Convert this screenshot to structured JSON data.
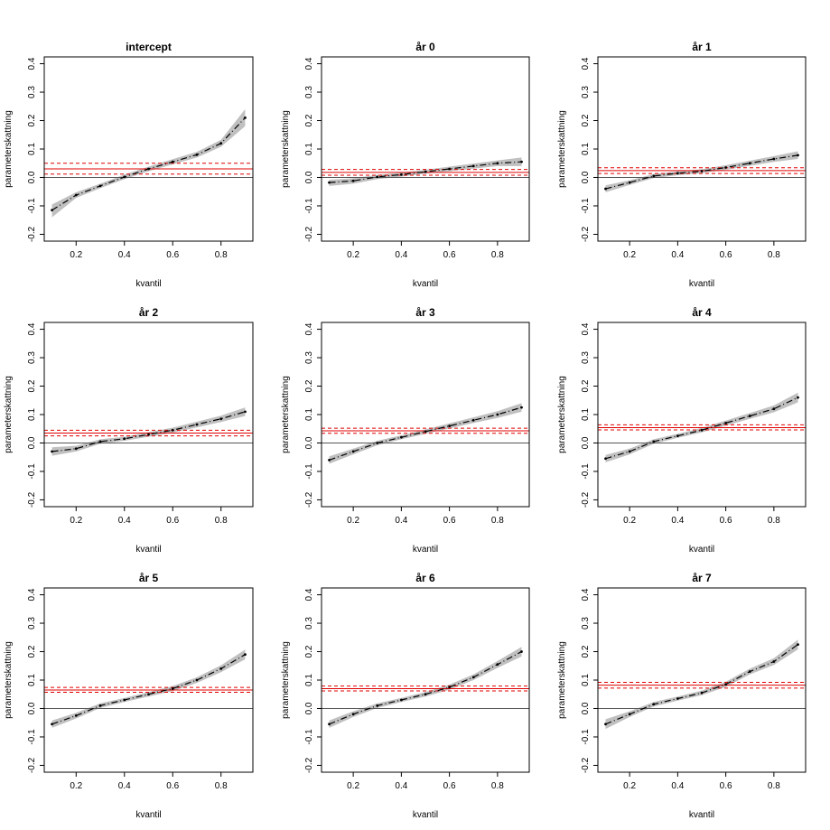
{
  "chart_data": [
    {
      "type": "line",
      "title": "intercept",
      "xlabel": "kvantil",
      "ylabel": "parameterskattning",
      "xlim": [
        0.1,
        0.9
      ],
      "ylim": [
        -0.2,
        0.4
      ],
      "xticks": [
        0.2,
        0.4,
        0.6,
        0.8
      ],
      "yticks": [
        -0.2,
        -0.1,
        0.0,
        0.1,
        0.2,
        0.3,
        0.4
      ],
      "x": [
        0.1,
        0.2,
        0.3,
        0.4,
        0.5,
        0.6,
        0.7,
        0.8,
        0.9
      ],
      "series": [
        {
          "values": [
            -0.115,
            -0.062,
            -0.03,
            0.002,
            0.03,
            0.055,
            0.08,
            0.12,
            0.21
          ],
          "lower": [
            -0.14,
            -0.072,
            -0.038,
            -0.006,
            0.022,
            0.046,
            0.07,
            0.108,
            0.18
          ],
          "upper": [
            -0.095,
            -0.052,
            -0.022,
            0.01,
            0.038,
            0.064,
            0.09,
            0.132,
            0.24
          ]
        }
      ],
      "reference": {
        "estimate": 0.03,
        "lower": 0.012,
        "upper": 0.05,
        "zero": 0
      }
    },
    {
      "type": "line",
      "title": "år 0",
      "xlabel": "kvantil",
      "ylabel": "parameterskattning",
      "xlim": [
        0.1,
        0.9
      ],
      "ylim": [
        -0.2,
        0.4
      ],
      "xticks": [
        0.2,
        0.4,
        0.6,
        0.8
      ],
      "yticks": [
        -0.2,
        -0.1,
        0.0,
        0.1,
        0.2,
        0.3,
        0.4
      ],
      "x": [
        0.1,
        0.2,
        0.3,
        0.4,
        0.5,
        0.6,
        0.7,
        0.8,
        0.9
      ],
      "series": [
        {
          "values": [
            -0.018,
            -0.012,
            0.002,
            0.01,
            0.02,
            0.03,
            0.04,
            0.05,
            0.055
          ],
          "lower": [
            -0.03,
            -0.022,
            -0.006,
            0.003,
            0.013,
            0.022,
            0.031,
            0.04,
            0.04
          ],
          "upper": [
            -0.008,
            -0.003,
            0.009,
            0.017,
            0.027,
            0.038,
            0.049,
            0.06,
            0.07
          ]
        }
      ],
      "reference": {
        "estimate": 0.018,
        "lower": 0.008,
        "upper": 0.028,
        "zero": 0
      }
    },
    {
      "type": "line",
      "title": "år 1",
      "xlabel": "kvantil",
      "ylabel": "parameterskattning",
      "xlim": [
        0.1,
        0.9
      ],
      "ylim": [
        -0.2,
        0.4
      ],
      "xticks": [
        0.2,
        0.4,
        0.6,
        0.8
      ],
      "yticks": [
        -0.2,
        -0.1,
        0.0,
        0.1,
        0.2,
        0.3,
        0.4
      ],
      "x": [
        0.1,
        0.2,
        0.3,
        0.4,
        0.5,
        0.6,
        0.7,
        0.8,
        0.9
      ],
      "series": [
        {
          "values": [
            -0.04,
            -0.018,
            0.005,
            0.015,
            0.022,
            0.035,
            0.05,
            0.065,
            0.078
          ],
          "lower": [
            -0.052,
            -0.026,
            -0.002,
            0.008,
            0.015,
            0.027,
            0.041,
            0.055,
            0.065
          ],
          "upper": [
            -0.028,
            -0.01,
            0.012,
            0.022,
            0.029,
            0.043,
            0.059,
            0.075,
            0.092
          ]
        }
      ],
      "reference": {
        "estimate": 0.024,
        "lower": 0.014,
        "upper": 0.034,
        "zero": 0
      }
    },
    {
      "type": "line",
      "title": "år 2",
      "xlabel": "kvantil",
      "ylabel": "parameterskattning",
      "xlim": [
        0.1,
        0.9
      ],
      "ylim": [
        -0.2,
        0.4
      ],
      "xticks": [
        0.2,
        0.4,
        0.6,
        0.8
      ],
      "yticks": [
        -0.2,
        -0.1,
        0.0,
        0.1,
        0.2,
        0.3,
        0.4
      ],
      "x": [
        0.1,
        0.2,
        0.3,
        0.4,
        0.5,
        0.6,
        0.7,
        0.8,
        0.9
      ],
      "series": [
        {
          "values": [
            -0.03,
            -0.02,
            0.005,
            0.015,
            0.03,
            0.045,
            0.065,
            0.085,
            0.11
          ],
          "lower": [
            -0.045,
            -0.03,
            -0.003,
            0.008,
            0.022,
            0.036,
            0.055,
            0.074,
            0.095
          ],
          "upper": [
            -0.015,
            -0.01,
            0.013,
            0.022,
            0.038,
            0.054,
            0.075,
            0.096,
            0.125
          ]
        }
      ],
      "reference": {
        "estimate": 0.035,
        "lower": 0.025,
        "upper": 0.045,
        "zero": 0
      }
    },
    {
      "type": "line",
      "title": "år 3",
      "xlabel": "kvantil",
      "ylabel": "parameterskattning",
      "xlim": [
        0.1,
        0.9
      ],
      "ylim": [
        -0.2,
        0.4
      ],
      "xticks": [
        0.2,
        0.4,
        0.6,
        0.8
      ],
      "yticks": [
        -0.2,
        -0.1,
        0.0,
        0.1,
        0.2,
        0.3,
        0.4
      ],
      "x": [
        0.1,
        0.2,
        0.3,
        0.4,
        0.5,
        0.6,
        0.7,
        0.8,
        0.9
      ],
      "series": [
        {
          "values": [
            -0.06,
            -0.03,
            0.0,
            0.02,
            0.04,
            0.06,
            0.08,
            0.1,
            0.125
          ],
          "lower": [
            -0.073,
            -0.04,
            -0.008,
            0.013,
            0.032,
            0.051,
            0.07,
            0.088,
            0.11
          ],
          "upper": [
            -0.047,
            -0.02,
            0.008,
            0.027,
            0.048,
            0.069,
            0.09,
            0.112,
            0.14
          ]
        }
      ],
      "reference": {
        "estimate": 0.043,
        "lower": 0.034,
        "upper": 0.052,
        "zero": 0
      }
    },
    {
      "type": "line",
      "title": "år 4",
      "xlabel": "kvantil",
      "ylabel": "parameterskattning",
      "xlim": [
        0.1,
        0.9
      ],
      "ylim": [
        -0.2,
        0.4
      ],
      "xticks": [
        0.2,
        0.4,
        0.6,
        0.8
      ],
      "yticks": [
        -0.2,
        -0.1,
        0.0,
        0.1,
        0.2,
        0.3,
        0.4
      ],
      "x": [
        0.1,
        0.2,
        0.3,
        0.4,
        0.5,
        0.6,
        0.7,
        0.8,
        0.9
      ],
      "series": [
        {
          "values": [
            -0.055,
            -0.03,
            0.005,
            0.025,
            0.045,
            0.07,
            0.095,
            0.12,
            0.16
          ],
          "lower": [
            -0.068,
            -0.04,
            -0.003,
            0.018,
            0.037,
            0.061,
            0.085,
            0.108,
            0.143
          ],
          "upper": [
            -0.042,
            -0.02,
            0.013,
            0.032,
            0.053,
            0.079,
            0.105,
            0.132,
            0.177
          ]
        }
      ],
      "reference": {
        "estimate": 0.054,
        "lower": 0.046,
        "upper": 0.064,
        "zero": 0
      }
    },
    {
      "type": "line",
      "title": "år 5",
      "xlabel": "kvantil",
      "ylabel": "parameterskattning",
      "xlim": [
        0.1,
        0.9
      ],
      "ylim": [
        -0.2,
        0.4
      ],
      "xticks": [
        0.2,
        0.4,
        0.6,
        0.8
      ],
      "yticks": [
        -0.2,
        -0.1,
        0.0,
        0.1,
        0.2,
        0.3,
        0.4
      ],
      "x": [
        0.1,
        0.2,
        0.3,
        0.4,
        0.5,
        0.6,
        0.7,
        0.8,
        0.9
      ],
      "series": [
        {
          "values": [
            -0.055,
            -0.025,
            0.01,
            0.03,
            0.05,
            0.07,
            0.1,
            0.14,
            0.19
          ],
          "lower": [
            -0.068,
            -0.035,
            0.002,
            0.023,
            0.042,
            0.061,
            0.09,
            0.128,
            0.173
          ],
          "upper": [
            -0.042,
            -0.015,
            0.018,
            0.037,
            0.058,
            0.079,
            0.11,
            0.152,
            0.207
          ]
        }
      ],
      "reference": {
        "estimate": 0.065,
        "lower": 0.057,
        "upper": 0.074,
        "zero": 0
      }
    },
    {
      "type": "line",
      "title": "år 6",
      "xlabel": "kvantil",
      "ylabel": "parameterskattning",
      "xlim": [
        0.1,
        0.9
      ],
      "ylim": [
        -0.2,
        0.4
      ],
      "xticks": [
        0.2,
        0.4,
        0.6,
        0.8
      ],
      "yticks": [
        -0.2,
        -0.1,
        0.0,
        0.1,
        0.2,
        0.3,
        0.4
      ],
      "x": [
        0.1,
        0.2,
        0.3,
        0.4,
        0.5,
        0.6,
        0.7,
        0.8,
        0.9
      ],
      "series": [
        {
          "values": [
            -0.055,
            -0.02,
            0.01,
            0.03,
            0.05,
            0.075,
            0.11,
            0.155,
            0.2
          ],
          "lower": [
            -0.068,
            -0.03,
            0.002,
            0.023,
            0.042,
            0.066,
            0.1,
            0.143,
            0.183
          ],
          "upper": [
            -0.042,
            -0.01,
            0.018,
            0.037,
            0.058,
            0.084,
            0.12,
            0.167,
            0.217
          ]
        }
      ],
      "reference": {
        "estimate": 0.07,
        "lower": 0.062,
        "upper": 0.079,
        "zero": 0
      }
    },
    {
      "type": "line",
      "title": "år 7",
      "xlabel": "kvantil",
      "ylabel": "parameterskattning",
      "xlim": [
        0.1,
        0.9
      ],
      "ylim": [
        -0.2,
        0.4
      ],
      "xticks": [
        0.2,
        0.4,
        0.6,
        0.8
      ],
      "yticks": [
        -0.2,
        -0.1,
        0.0,
        0.1,
        0.2,
        0.3,
        0.4
      ],
      "x": [
        0.1,
        0.2,
        0.3,
        0.4,
        0.5,
        0.6,
        0.7,
        0.8,
        0.9
      ],
      "series": [
        {
          "values": [
            -0.055,
            -0.02,
            0.015,
            0.035,
            0.055,
            0.085,
            0.13,
            0.165,
            0.225
          ],
          "lower": [
            -0.072,
            -0.03,
            0.007,
            0.028,
            0.047,
            0.076,
            0.12,
            0.153,
            0.208
          ],
          "upper": [
            -0.038,
            -0.01,
            0.023,
            0.042,
            0.063,
            0.094,
            0.14,
            0.177,
            0.242
          ]
        }
      ],
      "reference": {
        "estimate": 0.082,
        "lower": 0.072,
        "upper": 0.092,
        "zero": 0
      }
    }
  ]
}
